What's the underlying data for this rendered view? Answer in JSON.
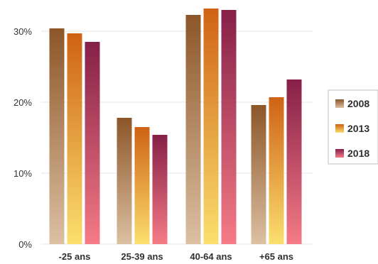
{
  "chart_data": {
    "type": "bar",
    "categories": [
      "-25 ans",
      "25-39 ans",
      "40-64 ans",
      "+65 ans"
    ],
    "series": [
      {
        "name": "2008",
        "values": [
          30.4,
          17.8,
          32.3,
          19.6
        ],
        "color_top": "#8c5628",
        "color_bottom": "#dcc0a2"
      },
      {
        "name": "2013",
        "values": [
          29.7,
          16.5,
          33.2,
          20.7
        ],
        "color_top": "#cf6214",
        "color_bottom": "#fbdf6e"
      },
      {
        "name": "2018",
        "values": [
          28.5,
          15.4,
          33.0,
          23.2
        ],
        "color_top": "#862048",
        "color_bottom": "#f57b86"
      }
    ],
    "yticks": [
      "0%",
      "10%",
      "20%",
      "30%"
    ],
    "ylim": [
      0,
      34
    ],
    "grid": true,
    "legend_position": "right"
  }
}
